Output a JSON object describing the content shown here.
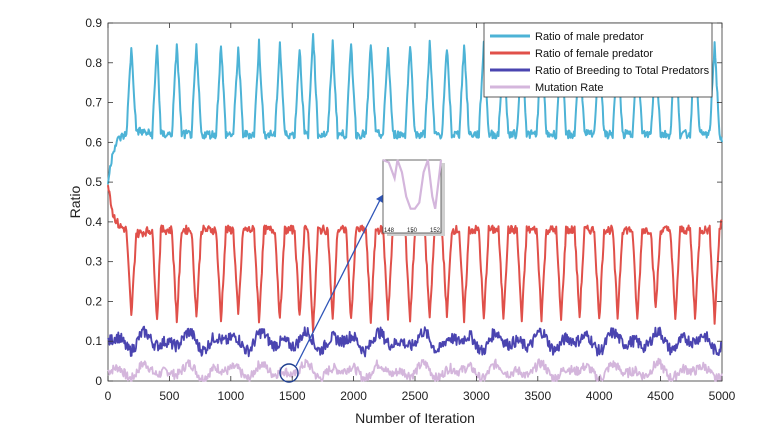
{
  "chart_data": {
    "type": "line",
    "xlabel": "Number of Iteration",
    "ylabel": "Ratio",
    "xlim": [
      0,
      5000
    ],
    "ylim": [
      0,
      0.9
    ],
    "xticks": [
      0,
      500,
      1000,
      1500,
      2000,
      2500,
      3000,
      3500,
      4000,
      4500,
      5000
    ],
    "yticks": [
      0,
      0.1,
      0.2,
      0.3,
      0.4,
      0.5,
      0.6,
      0.7,
      0.8,
      0.9
    ],
    "x_tick_labels": [
      "0",
      "500",
      "1000",
      "1500",
      "2000",
      "2500",
      "3000",
      "3500",
      "4000",
      "4500",
      "5000"
    ],
    "y_tick_labels": [
      "0",
      "0.1",
      "0.2",
      "0.3",
      "0.4",
      "0.5",
      "0.6",
      "0.7",
      "0.8",
      "0.9"
    ],
    "grid": false,
    "legend_position": "top-right",
    "series": [
      {
        "name": "Ratio of male predator",
        "color": "#4db3d6",
        "low": 0.62,
        "high": 0.84,
        "start": 0.5,
        "x": [
          0,
          40,
          90,
          150,
          190,
          230,
          360,
          400,
          430,
          520,
          560,
          600,
          680,
          720,
          760,
          880,
          920,
          960,
          1020,
          1060,
          1100,
          1190,
          1230,
          1270,
          1360,
          1400,
          1440,
          1520,
          1560,
          1600,
          1630,
          1670,
          1710,
          1790,
          1830,
          1870,
          1940,
          1980,
          2020,
          2100,
          2140,
          2180,
          2240,
          2280,
          2320,
          2420,
          2460,
          2500,
          2580,
          2620,
          2660,
          2720,
          2760,
          2800,
          2860,
          2900,
          2940,
          3020,
          3060,
          3100,
          3180,
          3220,
          3260,
          3330,
          3370,
          3410,
          3490,
          3530,
          3570,
          3650,
          3690,
          3730,
          3800,
          3840,
          3880,
          3960,
          4000,
          4040,
          4110,
          4150,
          4190,
          4270,
          4310,
          4350,
          4420,
          4460,
          4500,
          4580,
          4620,
          4660,
          4740,
          4780,
          4820,
          4900,
          4940,
          4980,
          5000
        ],
        "values": [
          0.5,
          0.58,
          0.61,
          0.62,
          0.84,
          0.63,
          0.62,
          0.85,
          0.62,
          0.62,
          0.85,
          0.62,
          0.62,
          0.84,
          0.62,
          0.62,
          0.85,
          0.62,
          0.62,
          0.84,
          0.62,
          0.62,
          0.85,
          0.62,
          0.62,
          0.85,
          0.62,
          0.62,
          0.84,
          0.62,
          0.62,
          0.88,
          0.62,
          0.62,
          0.85,
          0.62,
          0.62,
          0.85,
          0.62,
          0.62,
          0.85,
          0.62,
          0.62,
          0.84,
          0.62,
          0.62,
          0.85,
          0.62,
          0.62,
          0.85,
          0.62,
          0.62,
          0.84,
          0.62,
          0.62,
          0.85,
          0.62,
          0.62,
          0.85,
          0.62,
          0.62,
          0.84,
          0.62,
          0.62,
          0.85,
          0.62,
          0.62,
          0.84,
          0.62,
          0.62,
          0.85,
          0.62,
          0.62,
          0.84,
          0.62,
          0.62,
          0.85,
          0.62,
          0.62,
          0.84,
          0.62,
          0.62,
          0.85,
          0.62,
          0.62,
          0.82,
          0.62,
          0.62,
          0.85,
          0.62,
          0.62,
          0.84,
          0.62,
          0.62,
          0.85,
          0.62,
          0.6
        ]
      },
      {
        "name": "Ratio of female predator",
        "color": "#e0504a",
        "low": 0.16,
        "high": 0.38,
        "start": 0.5,
        "x": [
          0,
          40,
          90,
          150,
          190,
          230,
          360,
          400,
          430,
          520,
          560,
          600,
          680,
          720,
          760,
          880,
          920,
          960,
          1020,
          1060,
          1100,
          1190,
          1230,
          1270,
          1360,
          1400,
          1440,
          1520,
          1560,
          1600,
          1630,
          1670,
          1710,
          1790,
          1830,
          1870,
          1940,
          1980,
          2020,
          2100,
          2140,
          2180,
          2240,
          2280,
          2320,
          2420,
          2460,
          2500,
          2580,
          2620,
          2660,
          2720,
          2760,
          2800,
          2860,
          2900,
          2940,
          3020,
          3060,
          3100,
          3180,
          3220,
          3260,
          3330,
          3370,
          3410,
          3490,
          3530,
          3570,
          3650,
          3690,
          3730,
          3800,
          3840,
          3880,
          3960,
          4000,
          4040,
          4110,
          4150,
          4190,
          4270,
          4310,
          4350,
          4420,
          4460,
          4500,
          4580,
          4620,
          4660,
          4740,
          4780,
          4820,
          4900,
          4940,
          4980,
          5000
        ],
        "values": [
          0.5,
          0.42,
          0.39,
          0.38,
          0.16,
          0.37,
          0.38,
          0.15,
          0.38,
          0.38,
          0.15,
          0.38,
          0.38,
          0.16,
          0.38,
          0.38,
          0.15,
          0.38,
          0.38,
          0.16,
          0.38,
          0.38,
          0.15,
          0.38,
          0.38,
          0.15,
          0.38,
          0.38,
          0.16,
          0.38,
          0.38,
          0.12,
          0.38,
          0.38,
          0.15,
          0.38,
          0.38,
          0.15,
          0.38,
          0.38,
          0.15,
          0.38,
          0.38,
          0.16,
          0.38,
          0.38,
          0.15,
          0.38,
          0.38,
          0.15,
          0.38,
          0.38,
          0.16,
          0.38,
          0.38,
          0.15,
          0.38,
          0.38,
          0.15,
          0.38,
          0.38,
          0.16,
          0.38,
          0.38,
          0.15,
          0.38,
          0.38,
          0.16,
          0.38,
          0.38,
          0.15,
          0.38,
          0.38,
          0.16,
          0.38,
          0.38,
          0.15,
          0.38,
          0.38,
          0.16,
          0.38,
          0.38,
          0.15,
          0.38,
          0.38,
          0.18,
          0.38,
          0.38,
          0.15,
          0.38,
          0.38,
          0.16,
          0.38,
          0.38,
          0.15,
          0.38,
          0.4
        ]
      },
      {
        "name": "Ratio of Breeding to Total Predators",
        "color": "#4a44b0",
        "mean": 0.1,
        "amplitude": 0.025,
        "x": [
          0,
          5000
        ],
        "values": [
          0.1,
          0.1
        ]
      },
      {
        "name": "Mutation Rate",
        "color": "#d4b6dc",
        "mean": 0.025,
        "amplitude": 0.02,
        "x": [
          0,
          5000
        ],
        "values": [
          0.025,
          0.025
        ]
      }
    ],
    "inset": {
      "x_tick_labels": [
        "148",
        "150",
        "152"
      ],
      "xlim": [
        148,
        152
      ],
      "ylim": [
        0,
        0.06
      ],
      "x": [
        148,
        148.4,
        148.8,
        149.0,
        149.3,
        149.6,
        149.9,
        150.2,
        150.5,
        150.8,
        151.1,
        151.4,
        151.6,
        151.9,
        152
      ],
      "values": [
        0.06,
        0.058,
        0.045,
        0.06,
        0.05,
        0.03,
        0.02,
        0.02,
        0.025,
        0.05,
        0.06,
        0.03,
        0.02,
        0.05,
        0.06
      ]
    }
  }
}
